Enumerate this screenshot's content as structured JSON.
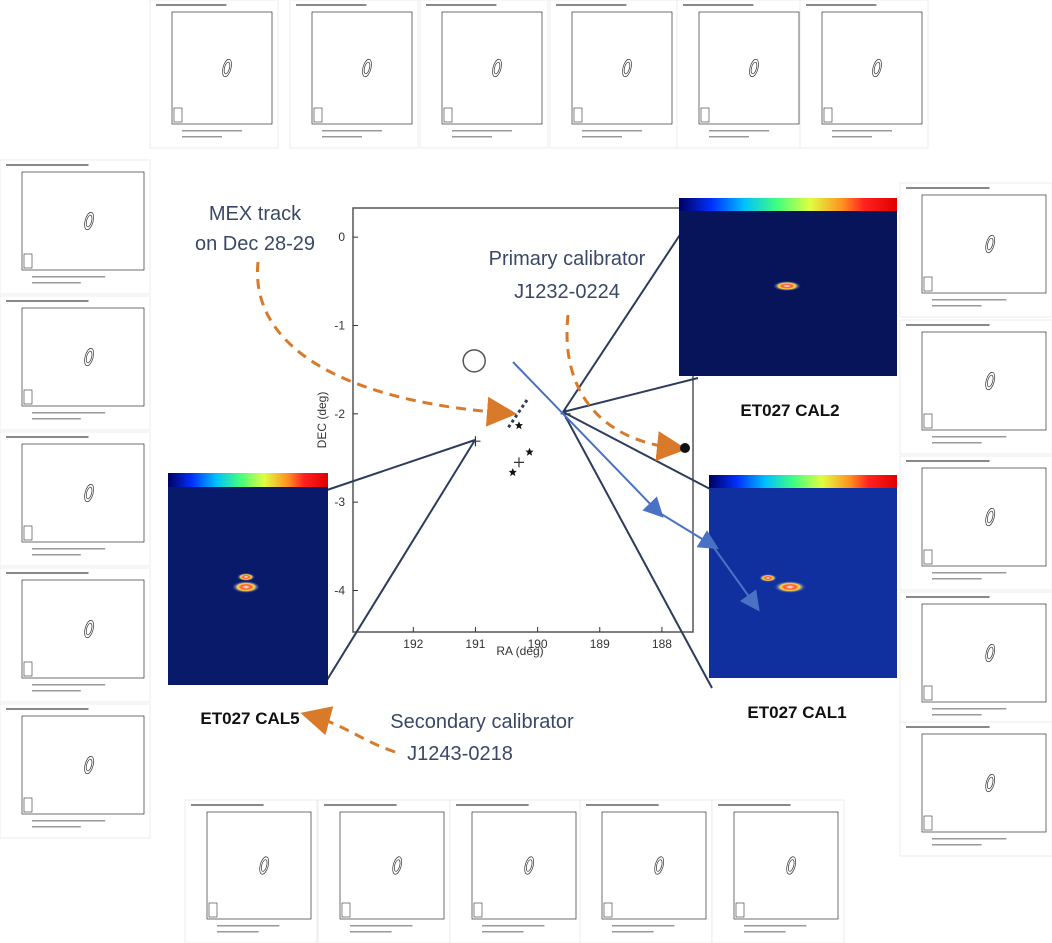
{
  "annotations": {
    "mex_track": [
      "MEX track",
      "on Dec 28-29"
    ],
    "primary": [
      "Primary calibrator",
      "J1232-0224"
    ],
    "secondary": [
      "Secondary calibrator",
      "J1243-0218"
    ]
  },
  "insets": {
    "cal2": "ET027 CAL2",
    "cal1": "ET027 CAL1",
    "cal5": "ET027 CAL5"
  },
  "central_plot": {
    "type": "scatter",
    "x_label": "RA (deg)",
    "y_label": "DEC (deg)",
    "xlim": [
      192.97,
      187.5
    ],
    "ylim": [
      -4.47,
      0.33
    ],
    "xticks": [
      192,
      191,
      190,
      189,
      188
    ],
    "yticks": [
      0,
      -1,
      -2,
      -3,
      -4
    ],
    "points": [
      {
        "x": 191.02,
        "y": -1.4,
        "marker": "circle"
      },
      {
        "x": 189.55,
        "y": -2.0,
        "marker": "plus"
      },
      {
        "x": 191.0,
        "y": -2.31,
        "marker": "plus"
      },
      {
        "x": 190.3,
        "y": -2.13,
        "marker": "star"
      },
      {
        "x": 190.13,
        "y": -2.43,
        "marker": "star"
      },
      {
        "x": 190.4,
        "y": -2.66,
        "marker": "star"
      },
      {
        "x": 190.3,
        "y": -2.55,
        "marker": "plus"
      }
    ]
  }
}
